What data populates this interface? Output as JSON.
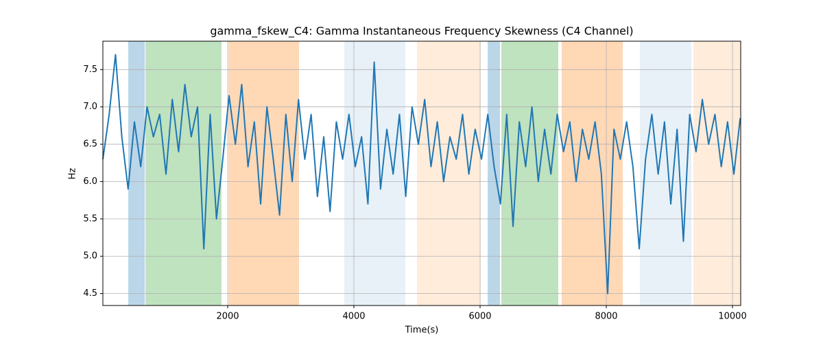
{
  "chart_data": {
    "type": "line",
    "title": "gamma_fskew_C4: Gamma Instantaneous Frequency Skewness (C4 Channel)",
    "xlabel": "Time(s)",
    "ylabel": "Hz",
    "xlim": [
      22,
      10130
    ],
    "ylim": [
      4.34,
      7.88
    ],
    "xticks": [
      2000,
      4000,
      6000,
      8000,
      10000
    ],
    "yticks": [
      4.5,
      {
        "value": 5,
        "label": "5.0"
      },
      5.5,
      {
        "value": 6,
        "label": "6.0"
      },
      6.5,
      {
        "value": 7,
        "label": "7.0"
      },
      7.5
    ],
    "grid": true,
    "spans": [
      {
        "start": 424,
        "end": 685,
        "color": "rgba(31,119,180,0.3)"
      },
      {
        "start": 696,
        "end": 1902,
        "color": "rgba(44,160,44,0.3)"
      },
      {
        "start": 2011,
        "end": 3130,
        "color": "rgba(255,127,14,0.3)"
      },
      {
        "start": 3848,
        "end": 4815,
        "color": "rgba(31,119,180,0.1)"
      },
      {
        "start": 5000,
        "end": 6011,
        "color": "rgba(255,127,14,0.15)"
      },
      {
        "start": 6120,
        "end": 6315,
        "color": "rgba(31,119,180,0.3)"
      },
      {
        "start": 6337,
        "end": 7239,
        "color": "rgba(44,160,44,0.3)"
      },
      {
        "start": 7293,
        "end": 8261,
        "color": "rgba(255,127,14,0.3)"
      },
      {
        "start": 8533,
        "end": 9348,
        "color": "rgba(31,119,180,0.1)"
      },
      {
        "start": 9380,
        "end": 10130,
        "color": "rgba(255,127,14,0.15)"
      }
    ],
    "x": [
      22,
      122,
      222,
      322,
      422,
      522,
      622,
      722,
      822,
      922,
      1022,
      1122,
      1222,
      1322,
      1422,
      1522,
      1622,
      1722,
      1822,
      1922,
      2022,
      2122,
      2222,
      2322,
      2422,
      2522,
      2622,
      2722,
      2822,
      2922,
      3022,
      3122,
      3222,
      3322,
      3422,
      3522,
      3622,
      3722,
      3822,
      3922,
      4022,
      4122,
      4222,
      4322,
      4422,
      4522,
      4622,
      4722,
      4822,
      4922,
      5022,
      5122,
      5222,
      5322,
      5422,
      5522,
      5622,
      5722,
      5822,
      5922,
      6022,
      6122,
      6222,
      6322,
      6422,
      6522,
      6622,
      6722,
      6822,
      6922,
      7022,
      7122,
      7222,
      7322,
      7422,
      7522,
      7622,
      7722,
      7822,
      7922,
      8022,
      8122,
      8222,
      8322,
      8422,
      8522,
      8622,
      8722,
      8822,
      8922,
      9022,
      9122,
      9222,
      9322,
      9422,
      9522,
      9622,
      9722,
      9822,
      9922,
      10022,
      10122
    ],
    "series": [
      {
        "name": "gamma_fskew_C4",
        "color": "#1f77b4",
        "values": [
          6.3,
          6.9,
          7.7,
          6.6,
          5.9,
          6.8,
          6.2,
          7.0,
          6.6,
          6.9,
          6.1,
          7.1,
          6.4,
          7.3,
          6.6,
          7.0,
          5.1,
          6.9,
          5.5,
          6.3,
          7.15,
          6.5,
          7.3,
          6.2,
          6.8,
          5.7,
          7.0,
          6.3,
          5.55,
          6.9,
          6.0,
          7.1,
          6.3,
          6.9,
          5.8,
          6.6,
          5.6,
          6.8,
          6.3,
          6.9,
          6.2,
          6.6,
          5.7,
          7.6,
          5.9,
          6.7,
          6.1,
          6.9,
          5.8,
          7.0,
          6.5,
          7.1,
          6.2,
          6.8,
          6.0,
          6.6,
          6.3,
          6.9,
          6.1,
          6.7,
          6.3,
          6.9,
          6.2,
          5.7,
          6.9,
          5.4,
          6.8,
          6.2,
          7.0,
          6.0,
          6.7,
          6.1,
          6.9,
          6.4,
          6.8,
          6.0,
          6.7,
          6.3,
          6.8,
          6.1,
          4.5,
          6.7,
          6.3,
          6.8,
          6.2,
          5.1,
          6.3,
          6.9,
          6.1,
          6.8,
          5.7,
          6.7,
          5.2,
          6.9,
          6.4,
          7.1,
          6.5,
          6.9,
          6.2,
          6.8,
          6.1,
          6.85
        ]
      }
    ]
  }
}
